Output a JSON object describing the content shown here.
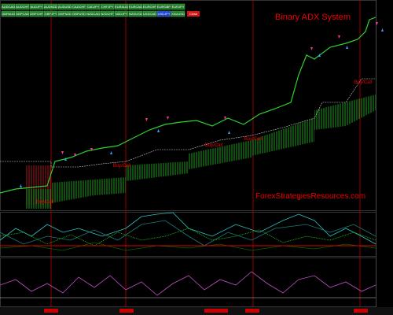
{
  "title": "Binary ADX System",
  "watermark": "ForexStrategiesResources.com",
  "symbol_buttons": {
    "row1": [
      "AUDCAD",
      "AUDCHF",
      "AUDJPY",
      "AUDNZD",
      "AUDUSD",
      "CADCHF",
      "CADJPY",
      "CHFJPY",
      "EURAUD",
      "EURCAD",
      "EURCHF",
      "EURGBP",
      "EURJPY"
    ],
    "row2": [
      "GBPAUD",
      "GBPCAD",
      "GBPCHF",
      "GBPJPY",
      "GBPNZD",
      "GBPUSD",
      "NZDCAD",
      "NZDCHF",
      "NZDJPY",
      "NZDUSD",
      "USDCAD",
      "USDJPY",
      "XAUUSD"
    ]
  },
  "selected_symbol": "USDJPY",
  "close_button": "Close",
  "signals": [
    "Buy/Call",
    "Buy/Call",
    "Buy/Call",
    "Buy/Call",
    "Buy/Call"
  ]
}
